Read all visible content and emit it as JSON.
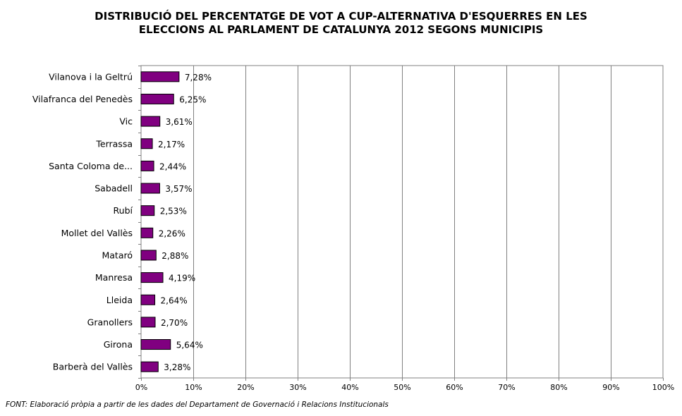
{
  "title_line1": "DISTRIBUCIÓ DEL PERCENTATGE DE VOT A CUP-ALTERNATIVA D'ESQUERRES EN LES",
  "title_line2": "ELECCIONS AL PARLAMENT DE CATALUNYA 2012 SEGONS MUNICIPIS",
  "source": "FONT: Elaboració pròpia a partir de les dades del Departament de Governació i Relacions Institucionals",
  "chart_data": {
    "type": "bar",
    "orientation": "horizontal",
    "title": "DISTRIBUCIÓ DEL PERCENTATGE DE VOT A CUP-ALTERNATIVA D'ESQUERRES EN LES ELECCIONS AL PARLAMENT DE CATALUNYA 2012 SEGONS MUNICIPIS",
    "xlabel": "",
    "ylabel": "",
    "xlim": [
      0,
      100
    ],
    "x_ticks": [
      "0%",
      "10%",
      "20%",
      "30%",
      "40%",
      "50%",
      "60%",
      "70%",
      "80%",
      "90%",
      "100%"
    ],
    "grid": true,
    "legend": "none",
    "bar_color": "#800080",
    "categories": [
      "Vilanova i la Geltrú",
      "Vilafranca del Penedès",
      "Vic",
      "Terrassa",
      "Santa Coloma de...",
      "Sabadell",
      "Rubí",
      "Mollet del Vallès",
      "Mataró",
      "Manresa",
      "Lleida",
      "Granollers",
      "Girona",
      "Barberà del Vallès"
    ],
    "values": [
      7.28,
      6.25,
      3.61,
      2.17,
      2.44,
      3.57,
      2.53,
      2.26,
      2.88,
      4.19,
      2.64,
      2.7,
      5.64,
      3.28
    ],
    "value_labels": [
      "7,28%",
      "6,25%",
      "3,61%",
      "2,17%",
      "2,44%",
      "3,57%",
      "2,53%",
      "2,26%",
      "2,88%",
      "4,19%",
      "2,64%",
      "2,70%",
      "5,64%",
      "3,28%"
    ]
  }
}
